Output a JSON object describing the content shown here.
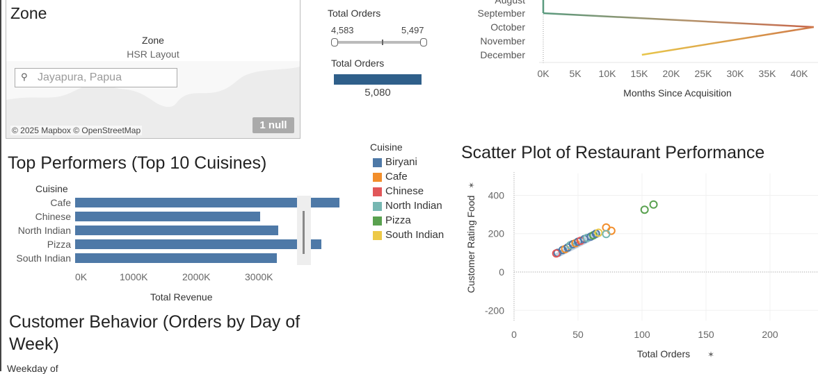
{
  "zone_panel": {
    "title": "Zone",
    "tooltip_label": "Zone",
    "tooltip_value": "HSR Layout",
    "search_placeholder": "Jayapura, Papua",
    "attribution": "© 2025 Mapbox © OpenStreetMap",
    "null_badge": "1 null"
  },
  "orders_filter": {
    "title": "Total Orders",
    "min_label": "4,583",
    "max_label": "5,497",
    "measure_title": "Total Orders",
    "measure_value": "5,080",
    "measure_color": "#2f5f8a"
  },
  "legend": {
    "title": "Cuisine",
    "items": [
      {
        "label": "Biryani",
        "color": "#4e79a7"
      },
      {
        "label": "Cafe",
        "color": "#f28e2b"
      },
      {
        "label": "Chinese",
        "color": "#e15759"
      },
      {
        "label": "North Indian",
        "color": "#76b7b2"
      },
      {
        "label": "Pizza",
        "color": "#59a14f"
      },
      {
        "label": "South Indian",
        "color": "#edc948"
      }
    ]
  },
  "top_performers": {
    "title": "Top Performers (Top 10 Cuisines)",
    "chart_data": {
      "type": "bar",
      "orientation": "horizontal",
      "dimension_label": "Cuisine",
      "categories": [
        "Cafe",
        "Chinese",
        "North Indian",
        "Pizza",
        "South Indian"
      ],
      "values": [
        3450000,
        2420000,
        2650000,
        3220000,
        2640000
      ],
      "xlabel": "Total Revenue",
      "x_ticks": [
        "0K",
        "1000K",
        "2000K",
        "3000K"
      ],
      "xlim": [
        0,
        3700000
      ],
      "color": "#4e79a7"
    }
  },
  "customer_behavior": {
    "title_line1": "Customer Behavior (Orders by Day of",
    "title_line2": "Week)",
    "dimension_label": "Weekday of"
  },
  "months_chart": {
    "chart_data": {
      "type": "line",
      "categories_visible": [
        "August",
        "September",
        "October",
        "November",
        "December"
      ],
      "xlabel": "Months Since Acquisition",
      "x_ticks": [
        "0K",
        "5K",
        "10K",
        "15K",
        "20K",
        "25K",
        "30K",
        "35K",
        "40K"
      ],
      "xlim": [
        0,
        42000
      ],
      "path": [
        {
          "month": "August",
          "x": 0
        },
        {
          "month": "September",
          "x": 0
        },
        {
          "month": "October",
          "x": 42500
        },
        {
          "month": "December",
          "x": 15500
        }
      ]
    }
  },
  "scatter": {
    "title": "Scatter Plot of Restaurant Performance",
    "chart_data": {
      "type": "scatter",
      "xlabel": "Total Orders",
      "ylabel": "Customer Rating Food",
      "xlim": [
        0,
        240
      ],
      "ylim": [
        -250,
        470
      ],
      "x_ticks": [
        0,
        50,
        100,
        150,
        200
      ],
      "y_ticks": [
        400,
        200,
        0,
        -200
      ],
      "points": [
        {
          "cuisine": "Biryani",
          "x": 34,
          "y": 100
        },
        {
          "cuisine": "Chinese",
          "x": 33,
          "y": 97
        },
        {
          "cuisine": "Biryani",
          "x": 38,
          "y": 115
        },
        {
          "cuisine": "Cafe",
          "x": 40,
          "y": 120
        },
        {
          "cuisine": "Biryani",
          "x": 42,
          "y": 128
        },
        {
          "cuisine": "North Indian",
          "x": 44,
          "y": 140
        },
        {
          "cuisine": "Biryani",
          "x": 46,
          "y": 145
        },
        {
          "cuisine": "Cafe",
          "x": 48,
          "y": 150
        },
        {
          "cuisine": "Biryani",
          "x": 50,
          "y": 158
        },
        {
          "cuisine": "Chinese",
          "x": 52,
          "y": 163
        },
        {
          "cuisine": "Biryani",
          "x": 55,
          "y": 172
        },
        {
          "cuisine": "North Indian",
          "x": 57,
          "y": 178
        },
        {
          "cuisine": "Biryani",
          "x": 60,
          "y": 185
        },
        {
          "cuisine": "Pizza",
          "x": 62,
          "y": 192
        },
        {
          "cuisine": "Biryani",
          "x": 64,
          "y": 200
        },
        {
          "cuisine": "South Indian",
          "x": 66,
          "y": 205
        },
        {
          "cuisine": "Cafe",
          "x": 72,
          "y": 232
        },
        {
          "cuisine": "Cafe",
          "x": 76,
          "y": 215
        },
        {
          "cuisine": "North Indian",
          "x": 72,
          "y": 198
        },
        {
          "cuisine": "Pizza",
          "x": 102,
          "y": 325
        },
        {
          "cuisine": "Pizza",
          "x": 109,
          "y": 352
        }
      ]
    }
  }
}
